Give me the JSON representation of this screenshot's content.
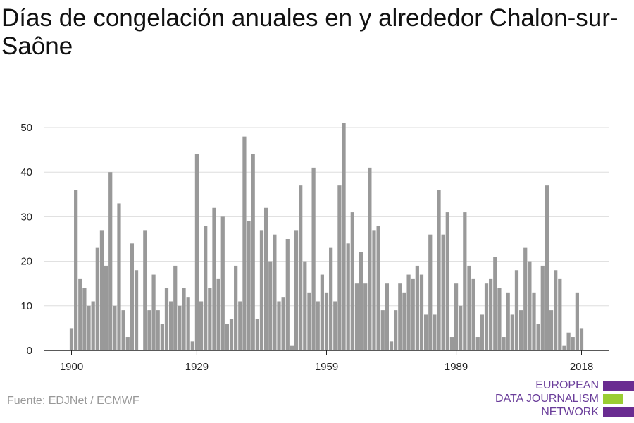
{
  "title": "Días de congelación anuales en y alrededor Chalon-sur-Saône",
  "source": "Fuente: EDJNet / ECMWF",
  "logo": {
    "line1": "EUROPEAN",
    "line2": "DATA JOURNALISM",
    "line3": "NETWORK",
    "colors": [
      "#6a2c91",
      "#9acd32",
      "#6a2c91"
    ]
  },
  "chart_data": {
    "type": "bar",
    "title": "Días de congelación anuales en y alrededor Chalon-sur-Saône",
    "xlabel": "",
    "ylabel": "",
    "x_ticks": [
      1900,
      1929,
      1959,
      1989,
      2018
    ],
    "y_ticks": [
      0,
      10,
      20,
      30,
      40,
      50
    ],
    "ylim": [
      0,
      52
    ],
    "grid": true,
    "bar_color": "#999999",
    "years": [
      1900,
      1901,
      1902,
      1903,
      1904,
      1905,
      1906,
      1907,
      1908,
      1909,
      1910,
      1911,
      1912,
      1913,
      1914,
      1915,
      1916,
      1917,
      1918,
      1919,
      1920,
      1921,
      1922,
      1923,
      1924,
      1925,
      1926,
      1927,
      1928,
      1929,
      1930,
      1931,
      1932,
      1933,
      1934,
      1935,
      1936,
      1937,
      1938,
      1939,
      1940,
      1941,
      1942,
      1943,
      1944,
      1945,
      1946,
      1947,
      1948,
      1949,
      1950,
      1951,
      1952,
      1953,
      1954,
      1955,
      1956,
      1957,
      1958,
      1959,
      1960,
      1961,
      1962,
      1963,
      1964,
      1965,
      1966,
      1967,
      1968,
      1969,
      1970,
      1971,
      1972,
      1973,
      1974,
      1975,
      1976,
      1977,
      1978,
      1979,
      1980,
      1981,
      1982,
      1983,
      1984,
      1985,
      1986,
      1987,
      1988,
      1989,
      1990,
      1991,
      1992,
      1993,
      1994,
      1995,
      1996,
      1997,
      1998,
      1999,
      2000,
      2001,
      2002,
      2003,
      2004,
      2005,
      2006,
      2007,
      2008,
      2009,
      2010,
      2011,
      2012,
      2013,
      2014,
      2015,
      2016,
      2017,
      2018
    ],
    "values": [
      5,
      36,
      16,
      14,
      10,
      11,
      23,
      27,
      19,
      40,
      10,
      33,
      9,
      3,
      24,
      18,
      0,
      27,
      9,
      17,
      9,
      6,
      14,
      11,
      19,
      10,
      14,
      12,
      2,
      44,
      11,
      28,
      14,
      32,
      16,
      30,
      6,
      7,
      19,
      11,
      48,
      29,
      44,
      7,
      27,
      32,
      20,
      26,
      11,
      12,
      25,
      1,
      27,
      37,
      20,
      13,
      41,
      11,
      17,
      13,
      23,
      11,
      37,
      51,
      24,
      31,
      15,
      22,
      15,
      41,
      27,
      28,
      9,
      15,
      2,
      9,
      15,
      13,
      17,
      16,
      19,
      17,
      8,
      26,
      8,
      36,
      26,
      31,
      3,
      15,
      10,
      31,
      19,
      16,
      3,
      8,
      15,
      16,
      21,
      14,
      3,
      13,
      8,
      18,
      9,
      23,
      20,
      13,
      6,
      19,
      37,
      9,
      18,
      16,
      1,
      4,
      3,
      13,
      5
    ]
  }
}
